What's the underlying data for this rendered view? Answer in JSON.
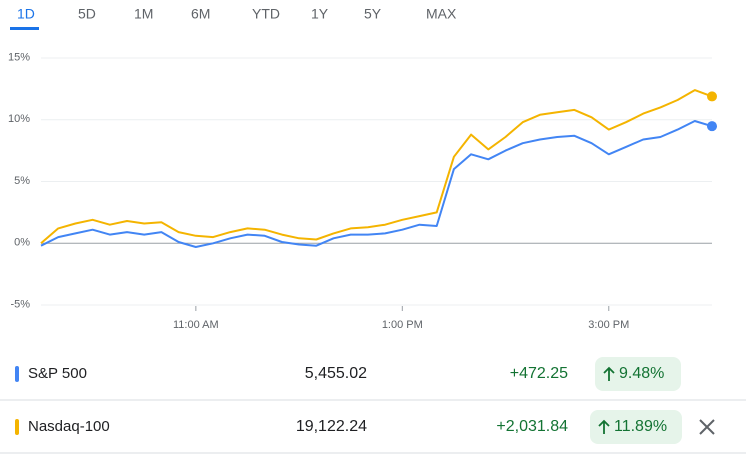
{
  "ranges": [
    "1D",
    "5D",
    "1M",
    "6M",
    "YTD",
    "1Y",
    "5Y",
    "MAX"
  ],
  "chart_data": {
    "type": "line",
    "x": [
      570,
      580,
      590,
      600,
      610,
      620,
      630,
      640,
      650,
      660,
      670,
      680,
      690,
      700,
      710,
      720,
      730,
      740,
      750,
      760,
      770,
      780,
      790,
      800,
      810,
      820,
      830,
      840,
      850,
      860,
      870,
      880,
      890,
      900,
      910,
      920,
      930,
      940,
      950,
      960
    ],
    "xlim": [
      570,
      960
    ],
    "xticks": [
      {
        "value": 660,
        "label": "11:00 AM"
      },
      {
        "value": 780,
        "label": "1:00 PM"
      },
      {
        "value": 900,
        "label": "3:00 PM"
      }
    ],
    "ylim": [
      -5,
      15
    ],
    "yticks": [
      {
        "value": 15,
        "label": "15%"
      },
      {
        "value": 10,
        "label": "10%"
      },
      {
        "value": 5,
        "label": "5%"
      },
      {
        "value": 0,
        "label": "0%"
      },
      {
        "value": -5,
        "label": "-5%"
      }
    ],
    "series": [
      {
        "name": "S&P 500",
        "color": "#4285f4",
        "values": [
          -0.2,
          0.5,
          0.8,
          1.1,
          0.7,
          0.9,
          0.7,
          0.9,
          0.1,
          -0.3,
          0.0,
          0.4,
          0.7,
          0.6,
          0.1,
          -0.1,
          -0.2,
          0.4,
          0.7,
          0.7,
          0.8,
          1.1,
          1.5,
          1.4,
          6.0,
          7.2,
          6.8,
          7.5,
          8.1,
          8.4,
          8.6,
          8.7,
          8.1,
          7.2,
          7.8,
          8.4,
          8.6,
          9.2,
          9.9,
          9.48
        ]
      },
      {
        "name": "Nasdaq-100",
        "color": "#f4b400",
        "values": [
          0.0,
          1.2,
          1.6,
          1.9,
          1.5,
          1.8,
          1.6,
          1.7,
          0.9,
          0.6,
          0.5,
          0.9,
          1.2,
          1.1,
          0.7,
          0.4,
          0.3,
          0.8,
          1.2,
          1.3,
          1.5,
          1.9,
          2.2,
          2.5,
          7.0,
          8.8,
          7.6,
          8.6,
          9.8,
          10.4,
          10.6,
          10.8,
          10.2,
          9.2,
          9.8,
          10.5,
          11.0,
          11.6,
          12.4,
          11.89
        ]
      }
    ]
  },
  "rows": [
    {
      "price": "5,455.02",
      "change": "+472.25",
      "percent": "9.48%"
    },
    {
      "price": "19,122.24",
      "change": "+2,031.84",
      "percent": "11.89%"
    }
  ]
}
